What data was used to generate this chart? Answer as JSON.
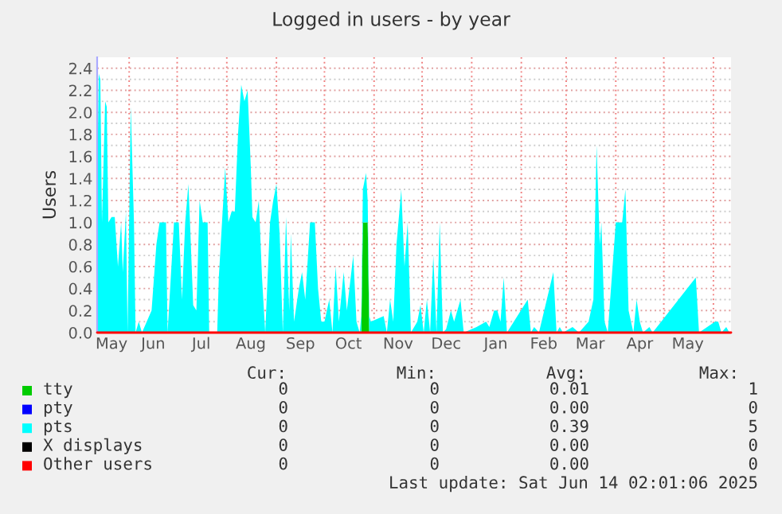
{
  "chart_data": {
    "type": "area",
    "stacked": true,
    "title": "Logged in users - by year",
    "ylabel": "Users",
    "xlim": [
      "2024-05-12",
      "2025-06-12"
    ],
    "ylim": [
      0.0,
      2.5
    ],
    "xticks": [
      {
        "value": "2024-05-21",
        "label": "May"
      },
      {
        "value": "2024-06-01",
        "label": null
      },
      {
        "value": "2024-06-16",
        "label": "Jun"
      },
      {
        "value": "2024-07-01",
        "label": null
      },
      {
        "value": "2024-07-16",
        "label": "Jul"
      },
      {
        "value": "2024-08-01",
        "label": null
      },
      {
        "value": "2024-08-16",
        "label": "Aug"
      },
      {
        "value": "2024-09-01",
        "label": null
      },
      {
        "value": "2024-09-16",
        "label": "Sep"
      },
      {
        "value": "2024-10-01",
        "label": null
      },
      {
        "value": "2024-10-16",
        "label": "Oct"
      },
      {
        "value": "2024-11-01",
        "label": null
      },
      {
        "value": "2024-11-16",
        "label": "Nov"
      },
      {
        "value": "2024-12-01",
        "label": null
      },
      {
        "value": "2024-12-16",
        "label": "Dec"
      },
      {
        "value": "2025-01-01",
        "label": null
      },
      {
        "value": "2025-01-16",
        "label": "Jan"
      },
      {
        "value": "2025-02-01",
        "label": null
      },
      {
        "value": "2025-02-15",
        "label": "Feb"
      },
      {
        "value": "2025-03-01",
        "label": null
      },
      {
        "value": "2025-03-16",
        "label": "Mar"
      },
      {
        "value": "2025-04-01",
        "label": null
      },
      {
        "value": "2025-04-16",
        "label": "Apr"
      },
      {
        "value": "2025-05-01",
        "label": null
      },
      {
        "value": "2025-05-16",
        "label": "May"
      },
      {
        "value": "2025-06-01",
        "label": null
      }
    ],
    "yticks": [
      {
        "value": 0,
        "label": "0.0"
      },
      {
        "value": 0.1,
        "label": null
      },
      0.2,
      {
        "value": 0.3,
        "label": null
      },
      0.4,
      {
        "value": 0.5,
        "label": null
      },
      0.6,
      {
        "value": 0.7,
        "label": null
      },
      0.8,
      {
        "value": 0.9,
        "label": null
      },
      {
        "value": 1,
        "label": "1.0"
      },
      {
        "value": 1.1,
        "label": null
      },
      1.2,
      {
        "value": 1.3,
        "label": null
      },
      1.4,
      {
        "value": 1.5,
        "label": null
      },
      1.6,
      {
        "value": 1.7,
        "label": null
      },
      1.8,
      {
        "value": 1.9,
        "label": null
      },
      {
        "value": 2,
        "label": "2.0"
      },
      {
        "value": 2.1,
        "label": null
      },
      2.2,
      {
        "value": 2.3,
        "label": null
      },
      2.4
    ],
    "grid": true,
    "legend": "bottom",
    "x": [
      "2024-05-12",
      "2024-05-13",
      "2024-05-14",
      "2024-05-15",
      "2024-05-17",
      "2024-05-18",
      "2024-05-19",
      "2024-05-21",
      "2024-05-23",
      "2024-05-25",
      "2024-05-27",
      "2024-05-28",
      "2024-05-30",
      "2024-05-31",
      "2024-06-02",
      "2024-06-04",
      "2024-06-05",
      "2024-06-07",
      "2024-06-09",
      "2024-06-15",
      "2024-06-18",
      "2024-06-20",
      "2024-06-24",
      "2024-06-25",
      "2024-06-29",
      "2024-07-02",
      "2024-07-04",
      "2024-07-06",
      "2024-07-08",
      "2024-07-09",
      "2024-07-11",
      "2024-07-13",
      "2024-07-15",
      "2024-07-17",
      "2024-07-20",
      "2024-07-21",
      "2024-07-26",
      "2024-07-27",
      "2024-07-29",
      "2024-07-31",
      "2024-08-02",
      "2024-08-04",
      "2024-08-06",
      "2024-08-08",
      "2024-08-10",
      "2024-08-12",
      "2024-08-14",
      "2024-08-16",
      "2024-08-17",
      "2024-08-19",
      "2024-08-21",
      "2024-08-23",
      "2024-08-25",
      "2024-08-28",
      "2024-08-30",
      "2024-09-01",
      "2024-09-03",
      "2024-09-05",
      "2024-09-07",
      "2024-09-09",
      "2024-09-10",
      "2024-09-12",
      "2024-09-15",
      "2024-09-17",
      "2024-09-19",
      "2024-09-22",
      "2024-09-25",
      "2024-09-27",
      "2024-09-29",
      "2024-10-01",
      "2024-10-04",
      "2024-10-06",
      "2024-10-08",
      "2024-10-10",
      "2024-10-13",
      "2024-10-15",
      "2024-10-19",
      "2024-10-21",
      "2024-10-23",
      "2024-10-24",
      "2024-10-25",
      "2024-10-27",
      "2024-10-28",
      "2024-10-29",
      "2024-10-30",
      "2024-11-07",
      "2024-11-09",
      "2024-11-11",
      "2024-11-13",
      "2024-11-15",
      "2024-11-18",
      "2024-11-20",
      "2024-11-22",
      "2024-11-24",
      "2024-11-28",
      "2024-11-30",
      "2024-12-02",
      "2024-12-04",
      "2024-12-06",
      "2024-12-08",
      "2024-12-10",
      "2024-12-12",
      "2024-12-14",
      "2024-12-16",
      "2024-12-19",
      "2024-12-21",
      "2024-12-25",
      "2024-12-27",
      "2025-01-04",
      "2025-01-10",
      "2025-01-12",
      "2025-01-15",
      "2025-01-17",
      "2025-01-19",
      "2025-01-21",
      "2025-01-23",
      "2025-02-05",
      "2025-02-07",
      "2025-02-09",
      "2025-02-12",
      "2025-02-21",
      "2025-02-23",
      "2025-02-25",
      "2025-02-27",
      "2025-03-05",
      "2025-03-09",
      "2025-03-15",
      "2025-03-18",
      "2025-03-20",
      "2025-03-22",
      "2025-03-23",
      "2025-03-25",
      "2025-03-27",
      "2025-04-01",
      "2025-04-05",
      "2025-04-07",
      "2025-04-09",
      "2025-04-12",
      "2025-04-14",
      "2025-04-16",
      "2025-04-18",
      "2025-04-22",
      "2025-04-24",
      "2025-05-21",
      "2025-05-23",
      "2025-06-02",
      "2025-06-04",
      "2025-06-06",
      "2025-06-09",
      "2025-06-11"
    ],
    "series": [
      {
        "name": "tty",
        "color": "#00cc00",
        "values": [
          0,
          0,
          0,
          0,
          0,
          0,
          0,
          0,
          0,
          0,
          0,
          0,
          0,
          0,
          0,
          0,
          0,
          0,
          0,
          0,
          0,
          0,
          0,
          0,
          0,
          0,
          0,
          0,
          0,
          0,
          0,
          0,
          0,
          0,
          0,
          0,
          0,
          0,
          0,
          0,
          0,
          0,
          0,
          0,
          0,
          0,
          0,
          0,
          0,
          0,
          0,
          0,
          0,
          0,
          0,
          0,
          0,
          0,
          0,
          0,
          0,
          0,
          0,
          0,
          0,
          0,
          0,
          0,
          0,
          0,
          0,
          0,
          0,
          0,
          0,
          0,
          0,
          0,
          0,
          0,
          1.0,
          1.0,
          1.0,
          0,
          0,
          0,
          0,
          0,
          0,
          0,
          0,
          0,
          0,
          0,
          0,
          0,
          0,
          0,
          0,
          0,
          0,
          0,
          0,
          0,
          0,
          0,
          0,
          0,
          0,
          0,
          0,
          0,
          0,
          0,
          0,
          0,
          0,
          0,
          0,
          0,
          0,
          0,
          0,
          0,
          0,
          0,
          0,
          0,
          0,
          0,
          0,
          0,
          0,
          0,
          0,
          0,
          0,
          0,
          0,
          0,
          0,
          0,
          0,
          0,
          0,
          0,
          0,
          0,
          0,
          0
        ]
      },
      {
        "name": "pty",
        "color": "#0000ff",
        "values": [
          null,
          null,
          null,
          null,
          null,
          null,
          null,
          null,
          null,
          null,
          null,
          null,
          null,
          null,
          null,
          null,
          null,
          null,
          null,
          null,
          null,
          null,
          null,
          null,
          null,
          null,
          null,
          null,
          null,
          null,
          null,
          null,
          null,
          null,
          null,
          null,
          null,
          null,
          null,
          null,
          null,
          null,
          null,
          null,
          null,
          null,
          null,
          null,
          null,
          null,
          null,
          null,
          null,
          null,
          null,
          null,
          null,
          null,
          null,
          null,
          null,
          null,
          null,
          null,
          null,
          null,
          null,
          null,
          null,
          null,
          null,
          null,
          null,
          null,
          null,
          null,
          null,
          null,
          null,
          null,
          null,
          null,
          null,
          null,
          null,
          null,
          null,
          null,
          null,
          null,
          null,
          null,
          null,
          null,
          null,
          null,
          null,
          null,
          null,
          null,
          null,
          null,
          null,
          null,
          null,
          null,
          null,
          null,
          null,
          null,
          null,
          null,
          null,
          null,
          null,
          null,
          null,
          null,
          null,
          null,
          null,
          null,
          null,
          null,
          null,
          null,
          null,
          null,
          null,
          null,
          null,
          null,
          null,
          null,
          null,
          null,
          null,
          null,
          null,
          null,
          null,
          null,
          null,
          null,
          null,
          null,
          null,
          null,
          null,
          null
        ]
      },
      {
        "name": "pts",
        "color": "#00ffff",
        "values": [
          1.3,
          2.35,
          2.3,
          1.0,
          2.1,
          2.05,
          1.0,
          1.05,
          1.05,
          0.6,
          1.0,
          0.55,
          1.1,
          0,
          2.05,
          1.0,
          0,
          0.1,
          0,
          0.2,
          0.8,
          1.0,
          1.0,
          0,
          1.0,
          1.0,
          0.3,
          1.0,
          1.35,
          1.0,
          0.25,
          0.2,
          1.2,
          1.0,
          1.0,
          0,
          0,
          0.5,
          1.0,
          1.5,
          1.0,
          1.1,
          1.1,
          1.8,
          2.25,
          2.1,
          2.2,
          1.5,
          1.05,
          1.0,
          1.2,
          0.5,
          0,
          1.0,
          1.2,
          1.35,
          0.9,
          0,
          1.05,
          0.2,
          0.9,
          0.1,
          0.4,
          0.55,
          0.3,
          1.0,
          1.0,
          0.4,
          0.1,
          0.1,
          0.3,
          0,
          0.6,
          0.1,
          0.55,
          0.2,
          0.7,
          0.1,
          0,
          0.15,
          0.3,
          0.45,
          0.2,
          0.15,
          0.1,
          0.15,
          0,
          0.3,
          0.1,
          0.8,
          1.3,
          0.6,
          1.0,
          0,
          0.1,
          0.25,
          0,
          0.3,
          0,
          0.7,
          0,
          1.0,
          0,
          0.03,
          0.2,
          0.1,
          0.3,
          0,
          0.05,
          0.1,
          0.05,
          0.2,
          0.2,
          0.1,
          0.5,
          0,
          0.3,
          0,
          0.05,
          0,
          0.55,
          0,
          0.05,
          0,
          0.05,
          0,
          0.1,
          0.3,
          1.7,
          0.8,
          1.0,
          0.1,
          0,
          1.0,
          1.0,
          1.3,
          0.2,
          0,
          0.3,
          0.1,
          0,
          0.05,
          0,
          0.5,
          0,
          0.1,
          0.1,
          0,
          0.05,
          0
        ]
      },
      {
        "name": "X displays",
        "color": "#000000",
        "values": [
          null,
          null,
          null,
          null,
          null,
          null,
          null,
          null,
          null,
          null,
          null,
          null,
          null,
          null,
          null,
          null,
          null,
          null,
          null,
          null,
          null,
          null,
          null,
          null,
          null,
          null,
          null,
          null,
          null,
          null,
          null,
          null,
          null,
          null,
          null,
          null,
          null,
          null,
          null,
          null,
          null,
          null,
          null,
          null,
          null,
          null,
          null,
          null,
          null,
          null,
          null,
          null,
          null,
          null,
          null,
          null,
          null,
          null,
          null,
          null,
          null,
          null,
          null,
          null,
          null,
          null,
          null,
          null,
          null,
          null,
          null,
          null,
          null,
          null,
          null,
          null,
          null,
          null,
          null,
          null,
          null,
          null,
          null,
          null,
          null,
          null,
          null,
          null,
          null,
          null,
          null,
          null,
          null,
          null,
          null,
          null,
          null,
          null,
          null,
          null,
          null,
          null,
          null,
          null,
          null,
          null,
          null,
          null,
          null,
          null,
          null,
          null,
          null,
          null,
          null,
          null,
          null,
          null,
          null,
          null,
          null,
          null,
          null,
          null,
          null,
          null,
          null,
          null,
          null,
          null,
          null,
          null,
          null,
          null,
          null,
          null,
          null,
          null,
          null,
          null,
          null,
          null,
          null,
          null,
          null,
          null,
          null,
          null,
          null,
          null
        ]
      },
      {
        "name": "Other users",
        "type": "line",
        "color": "#ff0000",
        "x": [
          "2024-05-12",
          "2025-06-12"
        ],
        "values": [
          0,
          0
        ]
      }
    ],
    "annotations": [
      "Cur:",
      "Min:",
      "Avg:",
      "Max:",
      "0",
      "0",
      "0.01",
      "1",
      "0",
      "0",
      "0.00",
      "0",
      "0",
      "0",
      "0.39",
      "5",
      "0",
      "0",
      "0.00",
      "0",
      "0",
      "0",
      "0.00",
      "0",
      "Last update: Sat Jun 14 02:01:06 2025"
    ]
  }
}
